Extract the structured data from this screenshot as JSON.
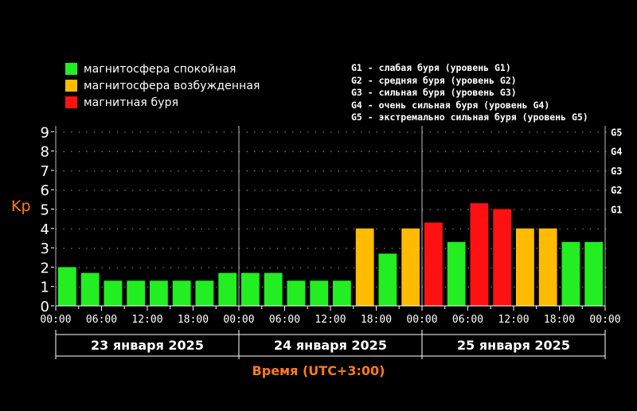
{
  "legend": {
    "items": [
      {
        "label": "магнитосфера спокойная",
        "color": "#22ee22"
      },
      {
        "label": "магнитосфера возбужденная",
        "color": "#ffbb00"
      },
      {
        "label": "магнитная буря",
        "color": "#ff1111"
      }
    ],
    "g_levels": [
      "G1 - слабая буря (уровень G1)",
      "G2 - средняя буря (уровень G2)",
      "G3 - сильная буря (уровень G3)",
      "G4 - очень сильная буря (уровень G4)",
      "G5 - экстремально сильная буря (уровень G5)"
    ]
  },
  "chart_data": {
    "type": "bar",
    "ylabel": "Kp",
    "xlabel": "Время (UTC+3:00)",
    "ylim": [
      0,
      9
    ],
    "yticks": [
      "0",
      "1",
      "2",
      "3",
      "4",
      "5",
      "6",
      "7",
      "8",
      "9"
    ],
    "g_ticks": [
      {
        "label": "G1",
        "kp": 5
      },
      {
        "label": "G2",
        "kp": 6
      },
      {
        "label": "G3",
        "kp": 7
      },
      {
        "label": "G4",
        "kp": 8
      },
      {
        "label": "G5",
        "kp": 9
      }
    ],
    "days": [
      "23 января 2025",
      "24 января 2025",
      "25 января 2025"
    ],
    "xtick_labels": [
      "00:00",
      "06:00",
      "12:00",
      "18:00",
      "00:00",
      "06:00",
      "12:00",
      "18:00",
      "00:00",
      "06:00",
      "12:00",
      "18:00",
      "00:00"
    ],
    "values": [
      2.0,
      1.7,
      1.3,
      1.3,
      1.3,
      1.3,
      1.3,
      1.7,
      1.7,
      1.7,
      1.3,
      1.3,
      1.3,
      4.0,
      2.7,
      4.0,
      4.3,
      3.3,
      5.3,
      5.0,
      4.0,
      4.0,
      3.3,
      3.3
    ],
    "colors": [
      "#22ee22",
      "#22ee22",
      "#22ee22",
      "#22ee22",
      "#22ee22",
      "#22ee22",
      "#22ee22",
      "#22ee22",
      "#22ee22",
      "#22ee22",
      "#22ee22",
      "#22ee22",
      "#22ee22",
      "#ffbb00",
      "#22ee22",
      "#ffbb00",
      "#ff1111",
      "#22ee22",
      "#ff1111",
      "#ff1111",
      "#ffbb00",
      "#ffbb00",
      "#22ee22",
      "#22ee22"
    ],
    "grid": true
  }
}
